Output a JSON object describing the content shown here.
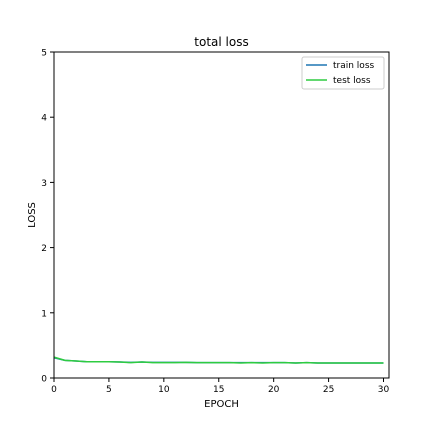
{
  "chart_data": {
    "type": "line",
    "title": "total loss",
    "xlabel": "EPOCH",
    "ylabel": "LOSS",
    "xlim": [
      0,
      30.5
    ],
    "ylim": [
      0,
      5
    ],
    "xticks": [
      0,
      5,
      10,
      15,
      20,
      25,
      30
    ],
    "yticks": [
      0,
      1,
      2,
      3,
      4,
      5
    ],
    "grid": false,
    "legend": "top-right",
    "x": [
      0,
      1,
      2,
      3,
      4,
      5,
      6,
      7,
      8,
      9,
      10,
      11,
      12,
      13,
      14,
      15,
      16,
      17,
      18,
      19,
      20,
      21,
      22,
      23,
      24,
      25,
      26,
      27,
      28,
      29,
      30
    ],
    "series": [
      {
        "name": "train loss",
        "color": "#1f77b4",
        "values": [
          0.31,
          0.27,
          0.26,
          0.25,
          0.25,
          0.25,
          0.245,
          0.24,
          0.245,
          0.24,
          0.24,
          0.24,
          0.24,
          0.235,
          0.235,
          0.235,
          0.235,
          0.235,
          0.235,
          0.235,
          0.235,
          0.235,
          0.23,
          0.235,
          0.23,
          0.23,
          0.23,
          0.23,
          0.23,
          0.23,
          0.23
        ]
      },
      {
        "name": "test loss",
        "color": "#2ecc40",
        "values": [
          0.32,
          0.27,
          0.26,
          0.25,
          0.25,
          0.25,
          0.245,
          0.235,
          0.245,
          0.235,
          0.235,
          0.235,
          0.24,
          0.235,
          0.235,
          0.235,
          0.235,
          0.23,
          0.235,
          0.23,
          0.235,
          0.235,
          0.23,
          0.235,
          0.23,
          0.23,
          0.23,
          0.23,
          0.23,
          0.23,
          0.23
        ]
      }
    ]
  }
}
